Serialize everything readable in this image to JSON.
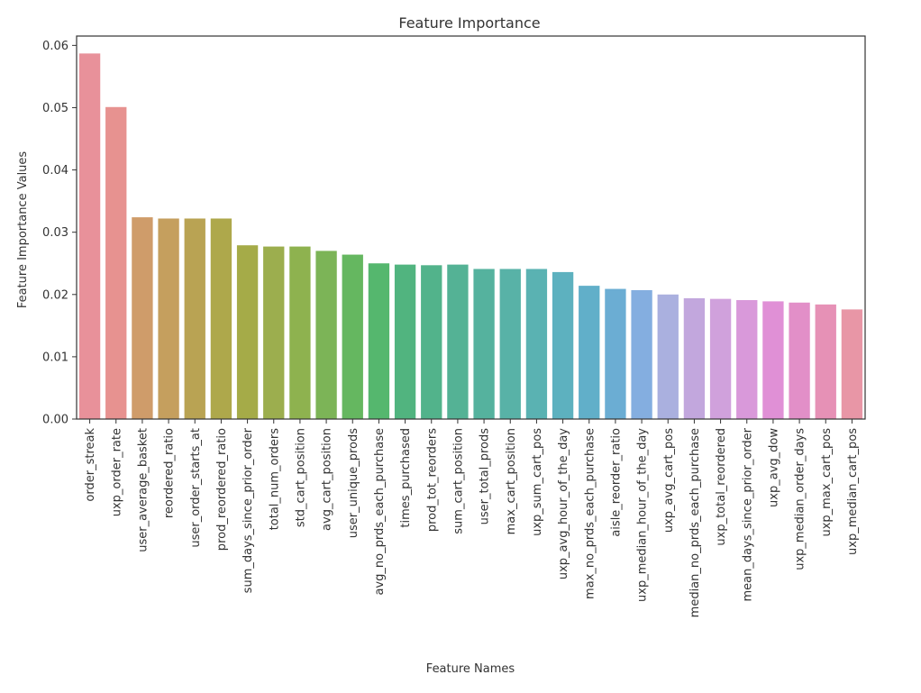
{
  "chart_data": {
    "type": "bar",
    "title": "Feature Importance",
    "xlabel": "Feature Names",
    "ylabel": "Feature Importance Values",
    "ylim": [
      0,
      0.0615
    ],
    "yticks": [
      "0.00",
      "0.01",
      "0.02",
      "0.03",
      "0.04",
      "0.05",
      "0.06"
    ],
    "grid": false,
    "legend": "none",
    "categories": [
      "order_streak",
      "uxp_order_rate",
      "user_average_basket",
      "reordered_ratio",
      "user_order_starts_at",
      "prod_reordered_ratio",
      "sum_days_since_prior_order",
      "total_num_orders",
      "std_cart_position",
      "avg_cart_position",
      "user_unique_prods",
      "avg_no_prds_each_purchase",
      "times_purchased",
      "prod_tot_reorders",
      "sum_cart_position",
      "user_total_prods",
      "max_cart_position",
      "uxp_sum_cart_pos",
      "uxp_avg_hour_of_the_day",
      "max_no_prds_each_purchase",
      "aisle_reorder_ratio",
      "uxp_median_hour_of_the_day",
      "uxp_avg_cart_pos",
      "median_no_prds_each_purchase",
      "uxp_total_reordered",
      "mean_days_since_prior_order",
      "uxp_avg_dow",
      "uxp_median_order_days",
      "uxp_max_cart_pos",
      "uxp_median_cart_pos"
    ],
    "values": [
      0.0587,
      0.0501,
      0.0324,
      0.0322,
      0.0322,
      0.0322,
      0.0279,
      0.0277,
      0.0277,
      0.027,
      0.0264,
      0.025,
      0.0248,
      0.0247,
      0.0248,
      0.0241,
      0.0241,
      0.0241,
      0.0236,
      0.0214,
      0.0209,
      0.0207,
      0.02,
      0.0194,
      0.0193,
      0.0191,
      0.0189,
      0.0187,
      0.0184,
      0.0176
    ],
    "colors": [
      "#e8919a",
      "#e79290",
      "#cf9c6a",
      "#c59f5e",
      "#b9a353",
      "#aea84b",
      "#a5ab48",
      "#9cae4e",
      "#8eb24f",
      "#7cb457",
      "#65b760",
      "#55b76e",
      "#51b47f",
      "#52b38b",
      "#54b295",
      "#55b29e",
      "#58b2a7",
      "#5ab2b2",
      "#5db1bf",
      "#61afc9",
      "#6badd3",
      "#84aee0",
      "#aab0df",
      "#c2a7dd",
      "#d0a1dc",
      "#d999da",
      "#e090d6",
      "#e28fc8",
      "#e691b6",
      "#e896a6"
    ]
  }
}
